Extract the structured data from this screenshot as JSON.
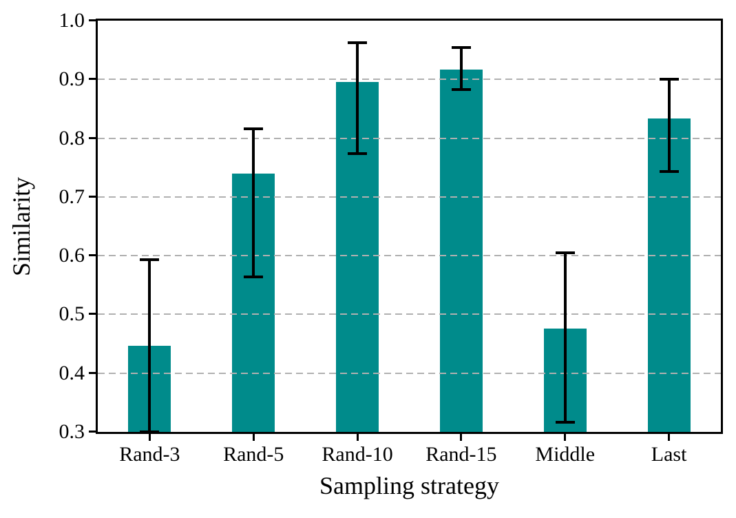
{
  "chart_data": {
    "type": "bar",
    "title": "",
    "xlabel": "Sampling strategy",
    "ylabel": "Similarity",
    "categories": [
      "Rand-3",
      "Rand-5",
      "Rand-10",
      "Rand-15",
      "Middle",
      "Last"
    ],
    "values": [
      0.447,
      0.74,
      0.896,
      0.917,
      0.476,
      0.834
    ],
    "error_low": [
      0.3,
      0.564,
      0.774,
      0.883,
      0.316,
      0.743
    ],
    "error_high": [
      0.593,
      0.816,
      0.962,
      0.954,
      0.605,
      0.9
    ],
    "ylim": [
      0.3,
      1.0
    ],
    "yticks": [
      0.3,
      0.4,
      0.5,
      0.6,
      0.7,
      0.8,
      0.9,
      1.0
    ],
    "ytick_labels": [
      "0.3",
      "0.4",
      "0.5",
      "0.6",
      "0.7",
      "0.8",
      "0.9",
      "1.0"
    ],
    "grid": "horizontal",
    "grid_style": "dashed",
    "legend": "none",
    "colors": {
      "bar": "#008B8B",
      "error": "#000000",
      "grid": "#b0b0b0",
      "axis": "#000000",
      "text": "#000000"
    }
  }
}
